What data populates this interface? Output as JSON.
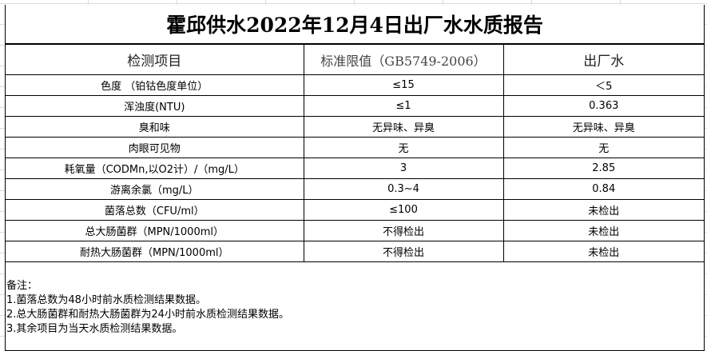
{
  "title": "霍邱供水2022年12月4日出厂水水质报告",
  "columns": [
    "检测项目",
    "标准限值（GB5749-2006）",
    "出厂水"
  ],
  "rows": [
    [
      "色度 （铂钴色度单位）",
      "≤15",
      "＜5"
    ],
    [
      "浑浊度(NTU)",
      "≤1",
      "0.363"
    ],
    [
      "臭和味",
      "无异味、异臭",
      "无异味、异臭"
    ],
    [
      "肉眼可见物",
      "无",
      "无"
    ],
    [
      "耗氧量（CODMn,以O2计）/（mg/L）",
      "3",
      "2.85"
    ],
    [
      "游离余氯（mg/L）",
      "0.3~4",
      "0.84"
    ],
    [
      "菌落总数（CFU/ml）",
      "≤100",
      "未检出"
    ],
    [
      "总大肠菌群（MPN/1000ml）",
      "不得检出",
      "未检出"
    ],
    [
      "耐热大肠菌群（MPN/1000ml）",
      "不得检出",
      "未检出"
    ]
  ],
  "notes": {
    "heading": "备注：",
    "items": [
      "1.菌落总数为48小时前水质检测结果数据。",
      "2.总大肠菌群和耐热大肠菌群为24小时前水质检测结果数据。",
      "3.其余项目为当天水质检测结果数据。"
    ]
  }
}
